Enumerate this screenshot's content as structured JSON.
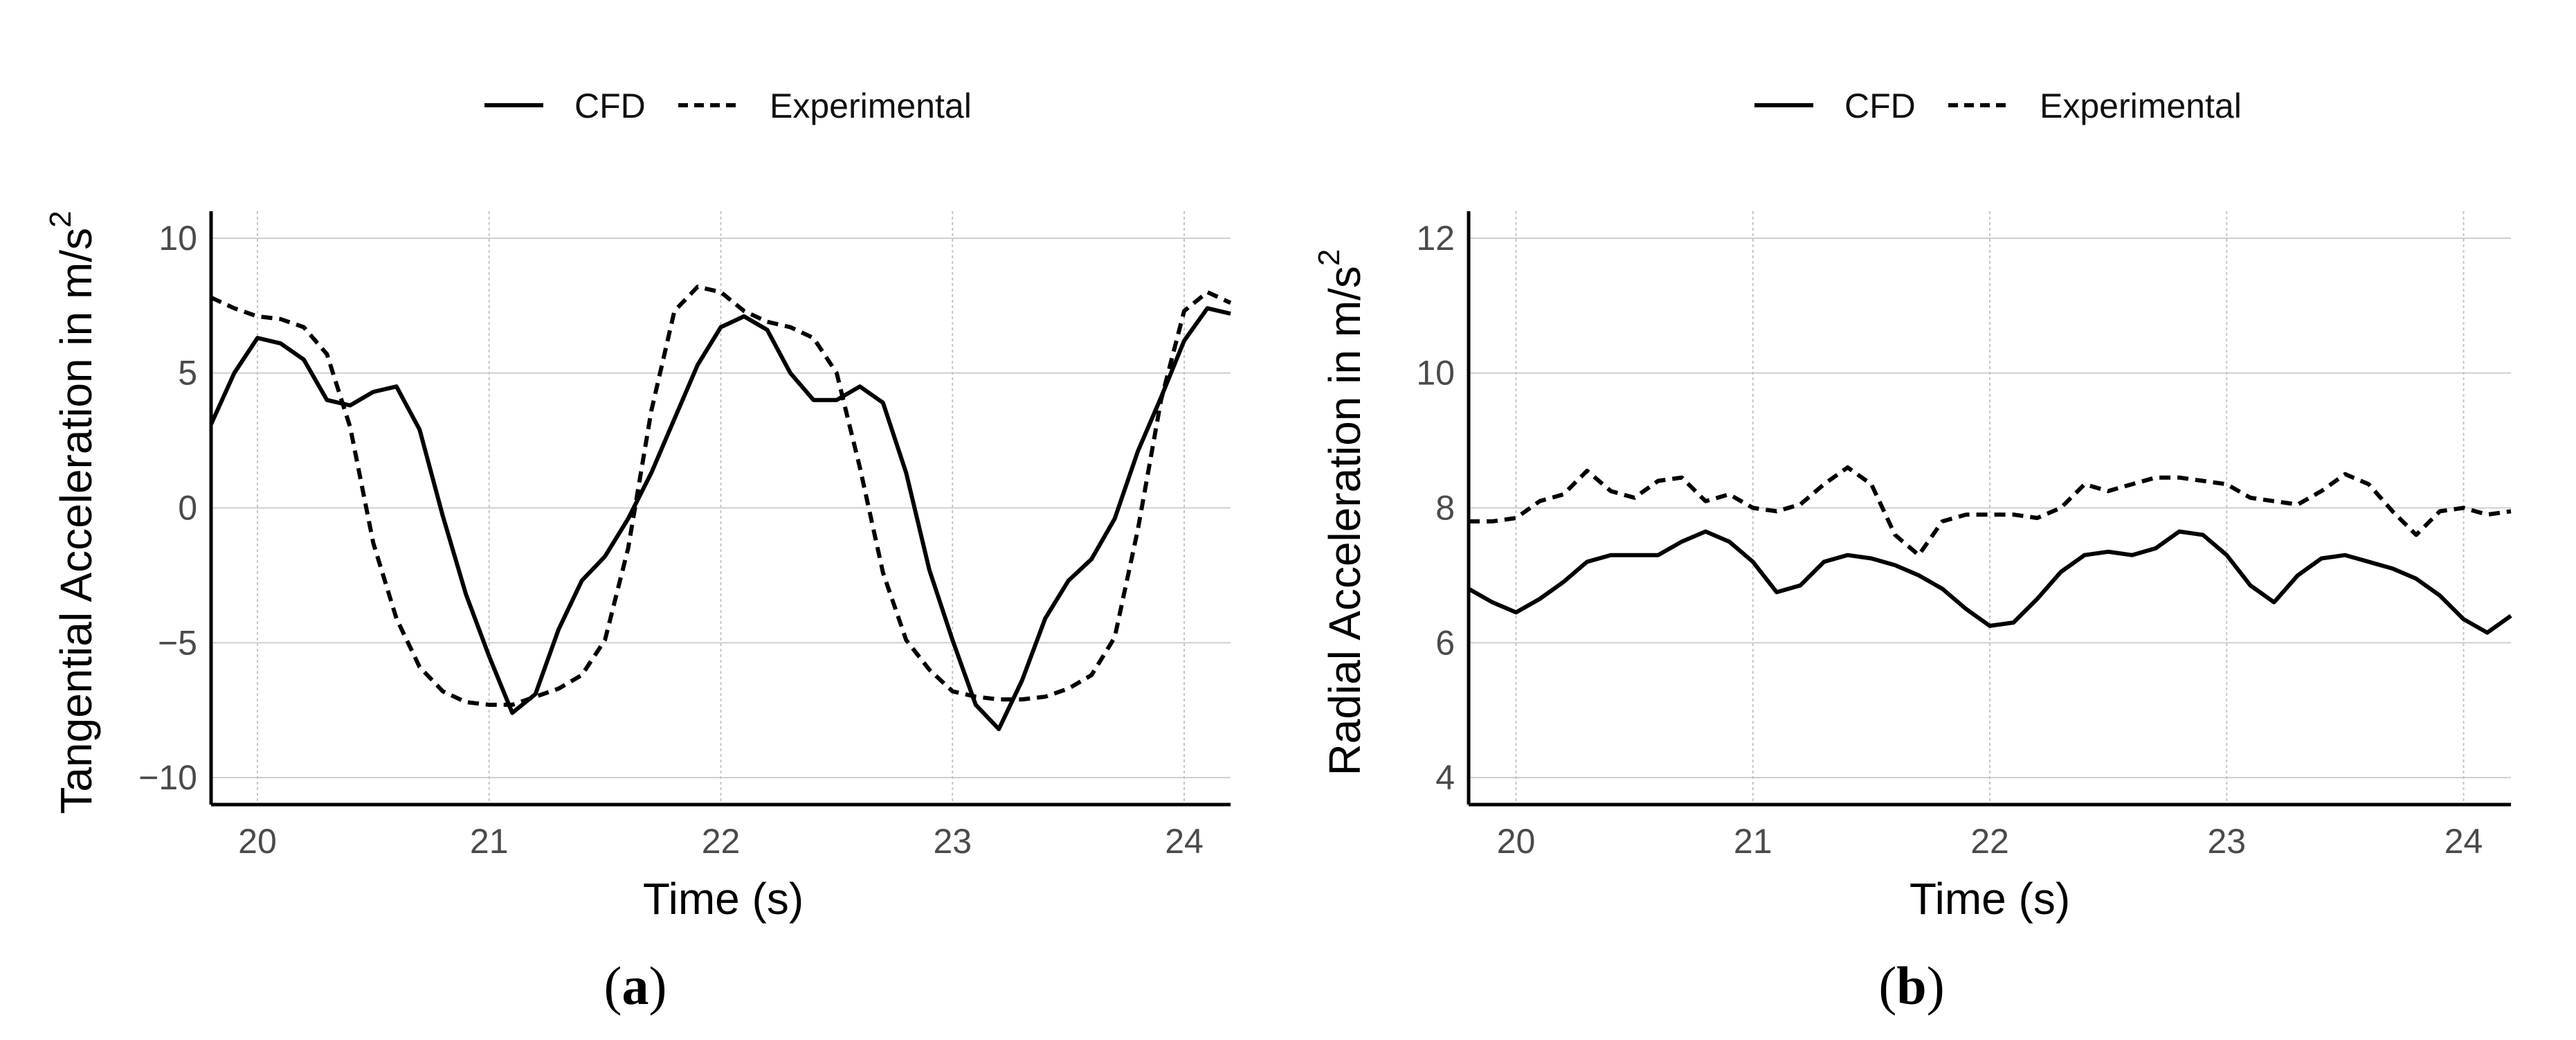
{
  "chart_data": [
    {
      "type": "line",
      "panel_label": {
        "open": "(",
        "letter": "a",
        "close": ")"
      },
      "legend": {
        "items": [
          {
            "name": "CFD",
            "style": "solid"
          },
          {
            "name": "Experimental",
            "style": "dashed"
          }
        ],
        "placement": "top-center"
      },
      "xlabel": "Time (s)",
      "ylabel": "Tangential Acceleration in m/s",
      "ylabel_superscript": "2",
      "xlim": [
        19.8,
        24.2
      ],
      "ylim": [
        -11,
        11
      ],
      "xticks": [
        20,
        21,
        22,
        23,
        24
      ],
      "xtick_labels": [
        "20",
        "21",
        "22",
        "23",
        "24"
      ],
      "yticks": [
        -10,
        -5,
        0,
        5,
        10
      ],
      "ytick_labels": [
        "−10",
        "−5",
        "0",
        "5",
        "10"
      ],
      "grid": true,
      "series": [
        {
          "name": "CFD",
          "style": "solid",
          "x": [
            19.8,
            19.9,
            20.0,
            20.1,
            20.2,
            20.3,
            20.4,
            20.5,
            20.6,
            20.7,
            20.8,
            20.9,
            21.0,
            21.1,
            21.2,
            21.3,
            21.4,
            21.5,
            21.6,
            21.7,
            21.8,
            21.9,
            22.0,
            22.1,
            22.2,
            22.3,
            22.4,
            22.5,
            22.6,
            22.7,
            22.8,
            22.9,
            23.0,
            23.1,
            23.2,
            23.3,
            23.4,
            23.5,
            23.6,
            23.7,
            23.8,
            23.9,
            24.0,
            24.1,
            24.2
          ],
          "y": [
            3.1,
            5.0,
            6.3,
            6.1,
            5.5,
            4.0,
            3.8,
            4.3,
            4.5,
            2.9,
            -0.3,
            -3.2,
            -5.5,
            -7.6,
            -6.9,
            -4.5,
            -2.7,
            -1.8,
            -0.4,
            1.3,
            3.3,
            5.3,
            6.7,
            7.1,
            6.6,
            5.0,
            4.0,
            4.0,
            4.5,
            3.9,
            1.3,
            -2.3,
            -4.9,
            -7.3,
            -8.2,
            -6.4,
            -4.1,
            -2.7,
            -1.9,
            -0.4,
            2.1,
            4.1,
            6.2,
            7.4,
            7.2
          ]
        },
        {
          "name": "Experimental",
          "style": "dashed",
          "x": [
            19.8,
            19.9,
            20.0,
            20.1,
            20.2,
            20.3,
            20.4,
            20.5,
            20.6,
            20.7,
            20.8,
            20.9,
            21.0,
            21.1,
            21.2,
            21.3,
            21.4,
            21.5,
            21.6,
            21.7,
            21.8,
            21.9,
            22.0,
            22.1,
            22.2,
            22.3,
            22.4,
            22.5,
            22.6,
            22.7,
            22.8,
            22.9,
            23.0,
            23.1,
            23.2,
            23.3,
            23.4,
            23.5,
            23.6,
            23.7,
            23.8,
            23.9,
            24.0,
            24.1,
            24.2
          ],
          "y": [
            7.8,
            7.4,
            7.1,
            7.0,
            6.7,
            5.7,
            3.0,
            -1.3,
            -4.1,
            -5.9,
            -6.8,
            -7.2,
            -7.3,
            -7.3,
            -7.0,
            -6.7,
            -6.2,
            -4.9,
            -1.5,
            3.6,
            7.3,
            8.2,
            8.0,
            7.3,
            6.9,
            6.7,
            6.3,
            5.0,
            1.5,
            -2.4,
            -4.9,
            -6.0,
            -6.8,
            -7.0,
            -7.1,
            -7.1,
            -7.0,
            -6.7,
            -6.2,
            -4.8,
            -0.8,
            4.0,
            7.3,
            8.0,
            7.6
          ]
        }
      ]
    },
    {
      "type": "line",
      "panel_label": {
        "open": "(",
        "letter": "b",
        "close": ")"
      },
      "legend": {
        "items": [
          {
            "name": "CFD",
            "style": "solid"
          },
          {
            "name": "Experimental",
            "style": "dashed"
          }
        ],
        "placement": "top-center"
      },
      "xlabel": "Time (s)",
      "ylabel": "Radial Acceleration in m/s",
      "ylabel_superscript": "2",
      "xlim": [
        19.8,
        24.2
      ],
      "ylim": [
        3.6,
        12.4
      ],
      "xticks": [
        20,
        21,
        22,
        23,
        24
      ],
      "xtick_labels": [
        "20",
        "21",
        "22",
        "23",
        "24"
      ],
      "yticks": [
        4,
        6,
        8,
        10,
        12
      ],
      "ytick_labels": [
        "4",
        "6",
        "8",
        "10",
        "12"
      ],
      "grid": true,
      "series": [
        {
          "name": "CFD",
          "style": "solid",
          "x": [
            19.8,
            19.9,
            20.0,
            20.1,
            20.2,
            20.3,
            20.4,
            20.5,
            20.6,
            20.7,
            20.8,
            20.9,
            21.0,
            21.1,
            21.2,
            21.3,
            21.4,
            21.5,
            21.6,
            21.7,
            21.8,
            21.9,
            22.0,
            22.1,
            22.2,
            22.3,
            22.4,
            22.5,
            22.6,
            22.7,
            22.8,
            22.9,
            23.0,
            23.1,
            23.2,
            23.3,
            23.4,
            23.5,
            23.6,
            23.7,
            23.8,
            23.9,
            24.0,
            24.1,
            24.2
          ],
          "y": [
            6.8,
            6.6,
            6.45,
            6.65,
            6.9,
            7.2,
            7.3,
            7.3,
            7.3,
            7.5,
            7.65,
            7.5,
            7.2,
            6.75,
            6.85,
            7.2,
            7.3,
            7.25,
            7.15,
            7.0,
            6.8,
            6.5,
            6.25,
            6.3,
            6.65,
            7.05,
            7.3,
            7.35,
            7.3,
            7.4,
            7.65,
            7.6,
            7.3,
            6.85,
            6.6,
            7.0,
            7.25,
            7.3,
            7.2,
            7.1,
            6.95,
            6.7,
            6.35,
            6.15,
            6.4
          ]
        },
        {
          "name": "Experimental",
          "style": "dashed",
          "x": [
            19.8,
            19.9,
            20.0,
            20.1,
            20.2,
            20.3,
            20.4,
            20.5,
            20.6,
            20.7,
            20.8,
            20.9,
            21.0,
            21.1,
            21.2,
            21.3,
            21.4,
            21.5,
            21.6,
            21.7,
            21.8,
            21.9,
            22.0,
            22.1,
            22.2,
            22.3,
            22.4,
            22.5,
            22.6,
            22.7,
            22.8,
            22.9,
            23.0,
            23.1,
            23.2,
            23.3,
            23.4,
            23.5,
            23.6,
            23.7,
            23.8,
            23.9,
            24.0,
            24.1,
            24.2
          ],
          "y": [
            7.8,
            7.8,
            7.85,
            8.1,
            8.2,
            8.55,
            8.25,
            8.15,
            8.4,
            8.45,
            8.1,
            8.2,
            8.0,
            7.95,
            8.05,
            8.35,
            8.6,
            8.35,
            7.6,
            7.3,
            7.8,
            7.9,
            7.9,
            7.9,
            7.85,
            8.0,
            8.35,
            8.25,
            8.35,
            8.45,
            8.45,
            8.4,
            8.35,
            8.15,
            8.1,
            8.05,
            8.25,
            8.5,
            8.35,
            7.95,
            7.6,
            7.95,
            8.0,
            7.9,
            7.95
          ]
        }
      ]
    }
  ]
}
